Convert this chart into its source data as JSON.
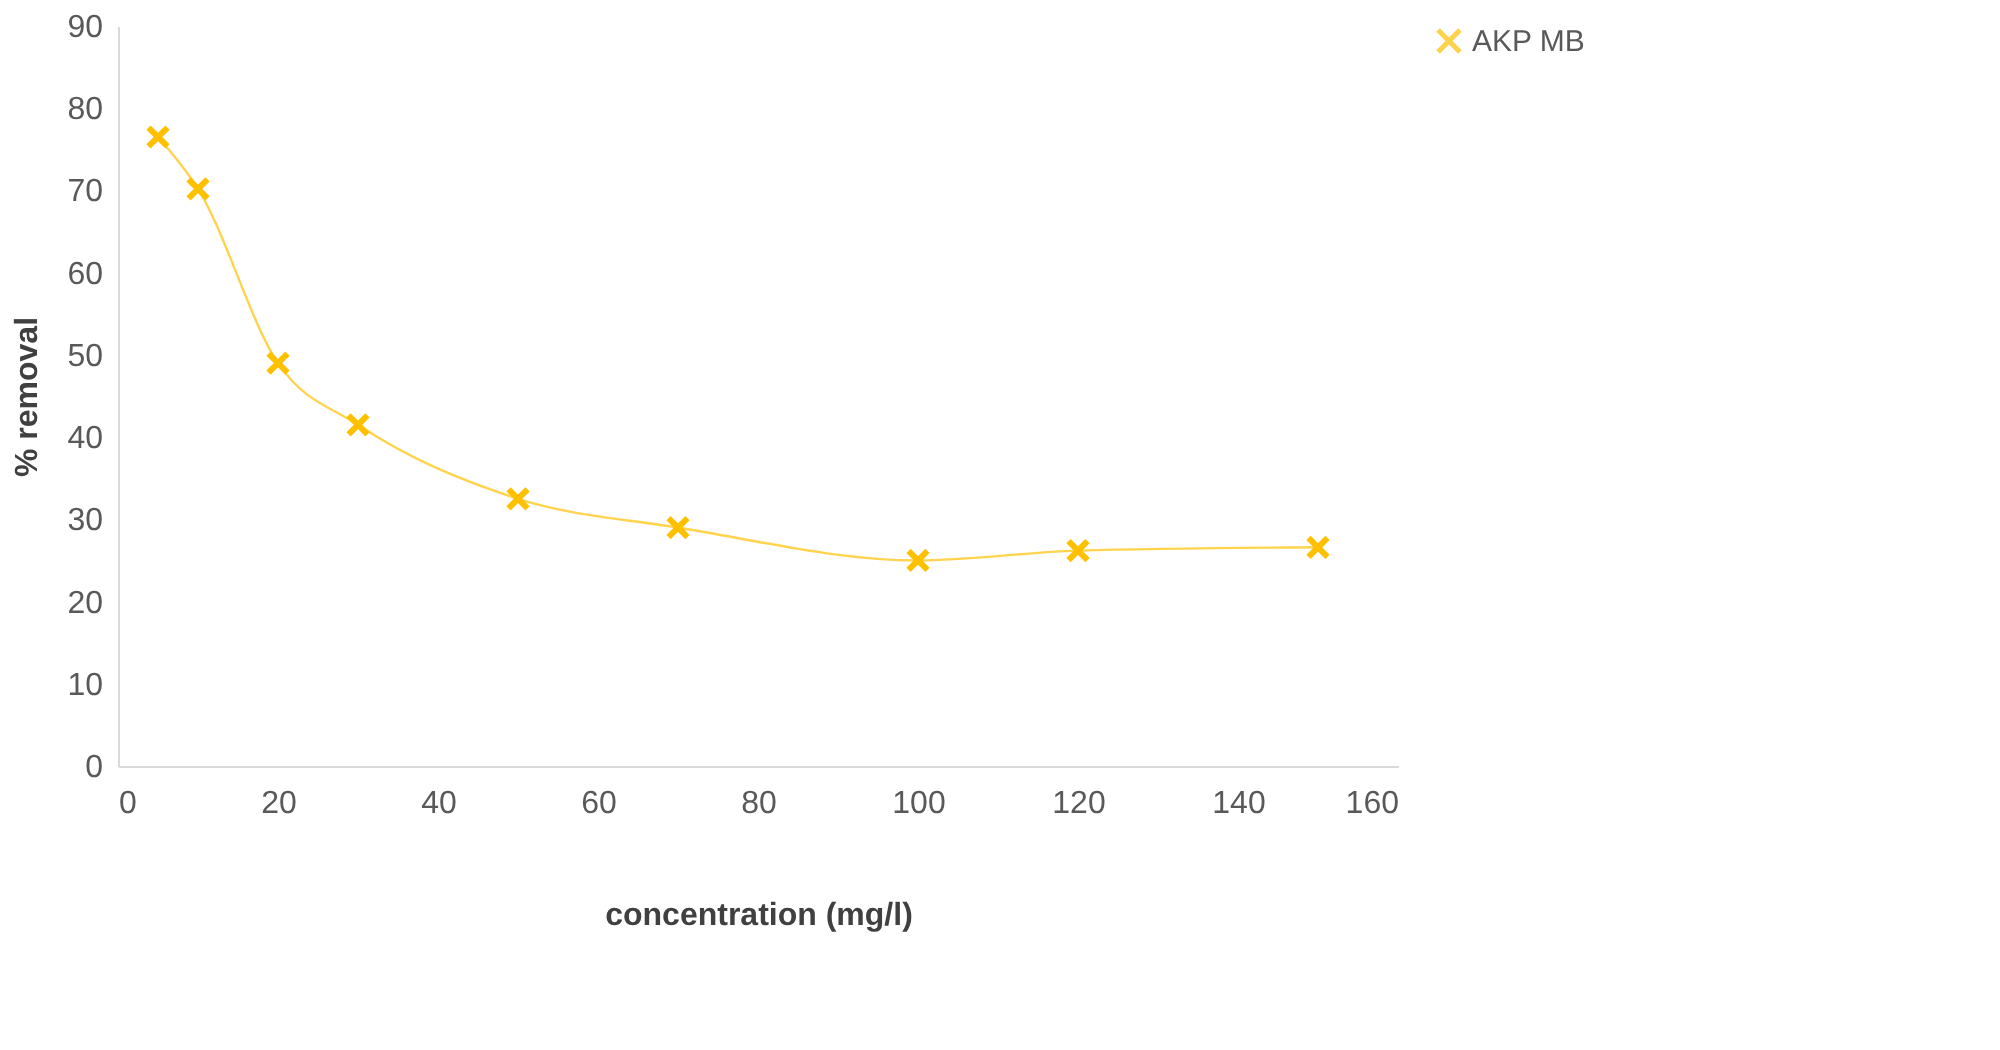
{
  "chart_data": {
    "type": "line",
    "xlabel": "concentration (mg/l)",
    "ylabel": "% removal",
    "x": [
      5,
      10,
      20,
      30,
      50,
      70,
      100,
      120,
      150
    ],
    "series": [
      {
        "name": "AKP MB",
        "color": "#ffc000",
        "values": [
          76.5,
          70.2,
          49,
          41.5,
          32.5,
          29,
          25,
          26.2,
          26.6
        ]
      }
    ],
    "xlim": [
      0,
      160
    ],
    "xticks": [
      0,
      20,
      40,
      60,
      80,
      100,
      120,
      140,
      160
    ],
    "ylim": [
      0,
      90
    ],
    "yticks": [
      0,
      10,
      20,
      30,
      40,
      50,
      60,
      70,
      80,
      90
    ],
    "grid": false,
    "legend": "right",
    "marker": "cross",
    "line_style": "solid"
  }
}
